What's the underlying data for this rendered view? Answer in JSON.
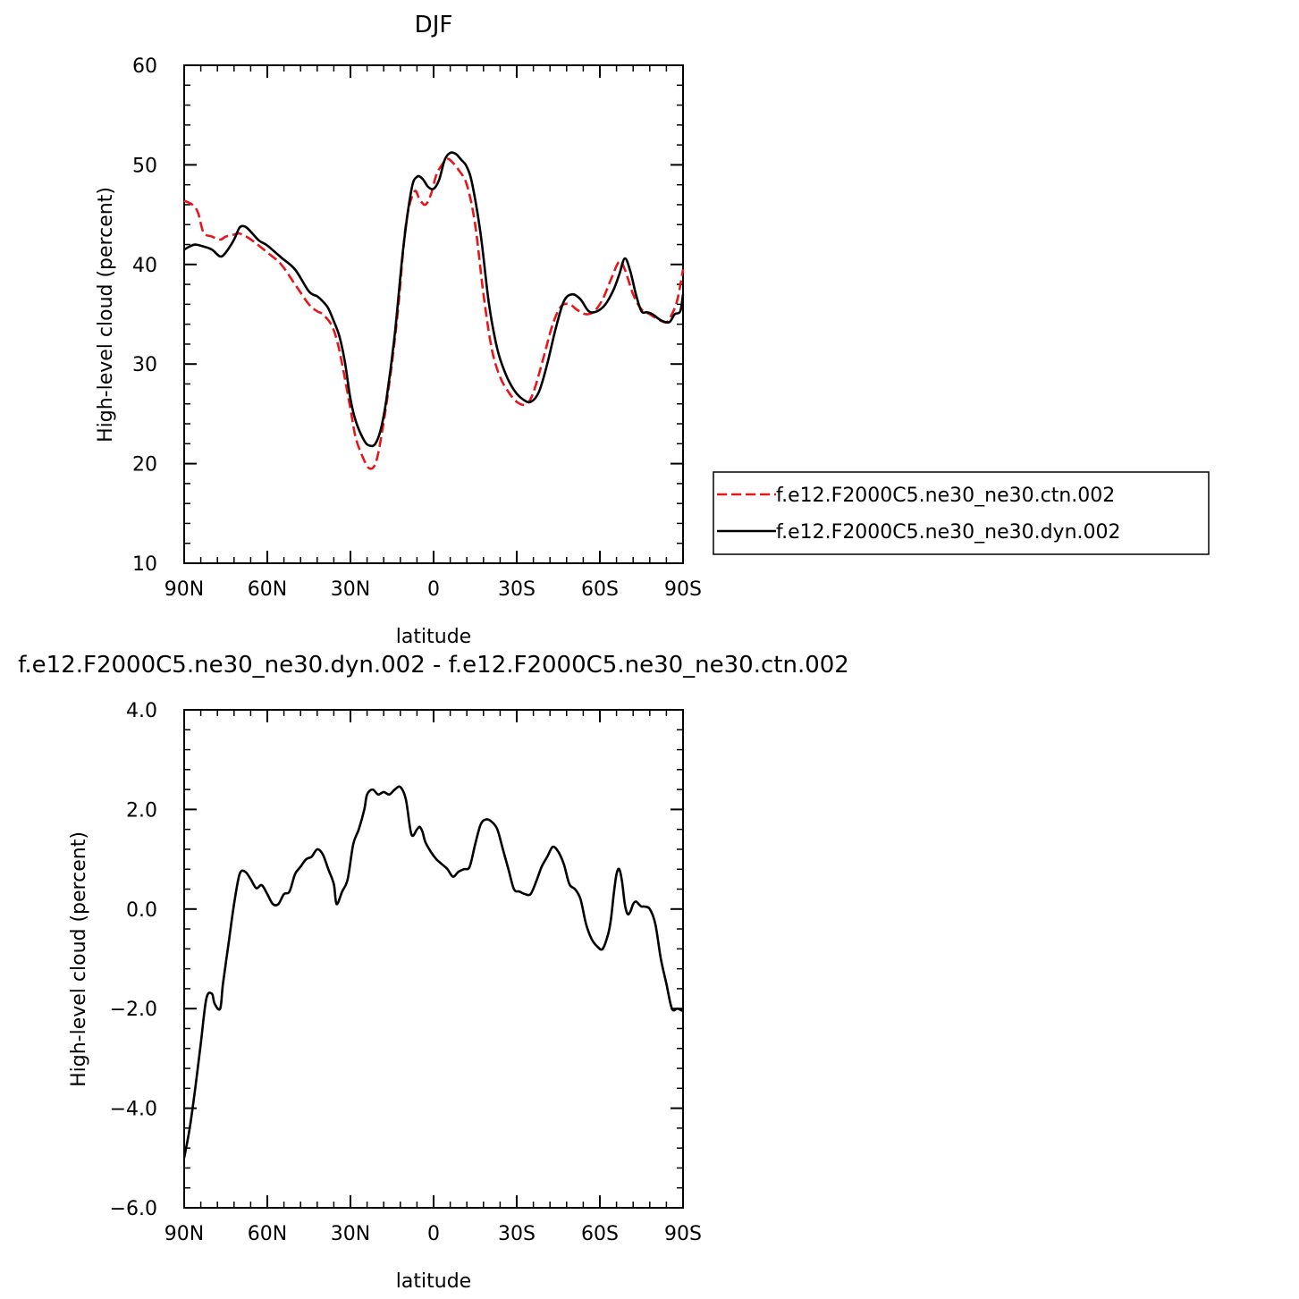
{
  "chart_data": [
    {
      "type": "line",
      "title": "DJF",
      "xlabel": "latitude",
      "ylabel": "High-level cloud (percent)",
      "xlim": [
        90,
        -90
      ],
      "ylim": [
        10,
        60
      ],
      "xticks": [
        90,
        60,
        30,
        0,
        -30,
        -60,
        -90
      ],
      "xtick_labels": [
        "90N",
        "60N",
        "30N",
        "0",
        "30S",
        "60S",
        "90S"
      ],
      "yticks": [
        10,
        20,
        30,
        40,
        50,
        60
      ],
      "ytick_labels": [
        "10",
        "20",
        "30",
        "40",
        "50",
        "60"
      ],
      "grid": false,
      "legend": {
        "placement": "right"
      },
      "series": [
        {
          "name": "f.e12.F2000C5.ne30_ne30.ctn.002",
          "color": "#e8161b",
          "dash": "dashed",
          "x": [
            90,
            87,
            85,
            83,
            80,
            77,
            75,
            72,
            70,
            67,
            64,
            60,
            55,
            50,
            45,
            42,
            40,
            37,
            35,
            33,
            30,
            28,
            25,
            23,
            21,
            19,
            16,
            13,
            10,
            7,
            5,
            3,
            1,
            -1,
            -3,
            -5,
            -7,
            -9,
            -12,
            -15,
            -18,
            -21,
            -24,
            -27,
            -30,
            -33,
            -35,
            -37,
            -40,
            -43,
            -46,
            -49,
            -52,
            -55,
            -58,
            -61,
            -64,
            -67,
            -69,
            -72,
            -75,
            -78,
            -81,
            -84,
            -86,
            -88,
            -90
          ],
          "y": [
            46.4,
            46.0,
            45.2,
            43.2,
            42.8,
            42.5,
            42.8,
            43.0,
            43.1,
            42.7,
            42.1,
            41.2,
            40.0,
            38.0,
            36.0,
            35.3,
            35.0,
            34.0,
            32.5,
            30.0,
            25.5,
            22.5,
            20.3,
            19.5,
            20.0,
            22.5,
            28.0,
            35.0,
            44.0,
            47.3,
            46.5,
            46.0,
            47.0,
            49.0,
            50.0,
            50.6,
            50.2,
            49.5,
            48.0,
            44.0,
            37.0,
            31.5,
            28.7,
            27.2,
            26.2,
            25.9,
            26.5,
            28.0,
            31.0,
            34.0,
            35.8,
            36.0,
            35.4,
            35.0,
            35.3,
            36.5,
            38.5,
            40.3,
            39.5,
            37.0,
            35.5,
            35.0,
            34.5,
            34.2,
            35.0,
            36.5,
            39.5
          ]
        },
        {
          "name": "f.e12.F2000C5.ne30_ne30.dyn.002",
          "color": "#000000",
          "dash": "solid",
          "x": [
            90,
            88,
            86,
            83,
            80,
            77,
            75,
            72,
            70,
            68,
            66,
            63,
            60,
            55,
            50,
            45,
            42,
            40,
            38,
            36,
            34,
            32,
            30,
            28,
            25,
            23,
            21,
            19,
            17,
            14,
            11,
            8,
            6,
            4,
            2,
            0,
            -2,
            -4,
            -6,
            -8,
            -10,
            -12,
            -14,
            -17,
            -20,
            -23,
            -26,
            -29,
            -32,
            -35,
            -38,
            -41,
            -44,
            -47,
            -50,
            -53,
            -56,
            -59,
            -62,
            -65,
            -67,
            -69,
            -71,
            -73,
            -75,
            -77,
            -79,
            -82,
            -85,
            -87,
            -89,
            -90
          ],
          "y": [
            41.5,
            41.8,
            42.0,
            41.8,
            41.5,
            40.8,
            41.2,
            42.5,
            43.7,
            43.8,
            43.3,
            42.4,
            41.9,
            40.7,
            39.5,
            37.3,
            36.8,
            36.3,
            35.6,
            34.3,
            32.8,
            30.2,
            26.5,
            24.2,
            22.3,
            21.8,
            22.0,
            23.5,
            26.5,
            33.0,
            41.5,
            47.5,
            48.8,
            48.6,
            47.8,
            47.6,
            48.5,
            50.5,
            51.2,
            51.1,
            50.5,
            49.8,
            48.0,
            43.0,
            36.0,
            31.5,
            29.0,
            27.4,
            26.5,
            26.2,
            27.2,
            30.0,
            33.5,
            36.3,
            37.0,
            36.5,
            35.3,
            35.3,
            36.0,
            37.5,
            39.0,
            40.6,
            39.3,
            37.0,
            35.3,
            35.2,
            35.0,
            34.4,
            34.2,
            35.0,
            35.3,
            37.0
          ]
        }
      ]
    },
    {
      "type": "line",
      "title": "f.e12.F2000C5.ne30_ne30.dyn.002 - f.e12.F2000C5.ne30_ne30.ctn.002",
      "xlabel": "latitude",
      "ylabel": "High-level cloud (percent)",
      "xlim": [
        90,
        -90
      ],
      "ylim": [
        -6,
        4
      ],
      "xticks": [
        90,
        60,
        30,
        0,
        -30,
        -60,
        -90
      ],
      "xtick_labels": [
        "90N",
        "60N",
        "30N",
        "0",
        "30S",
        "60S",
        "90S"
      ],
      "yticks": [
        -6,
        -4,
        -2,
        0,
        2,
        4
      ],
      "ytick_labels": [
        "−6.0",
        "−4.0",
        "−2.0",
        "0.0",
        "2.0",
        "4.0"
      ],
      "grid": false,
      "series": [
        {
          "color": "#000000",
          "dash": "solid",
          "x": [
            90,
            88,
            86,
            84,
            82,
            80,
            79,
            77,
            76,
            74,
            72,
            70,
            68,
            66,
            64,
            62,
            60,
            58,
            56,
            54,
            52,
            50,
            48,
            46,
            44,
            42,
            40,
            38,
            36,
            35,
            33,
            31,
            29,
            27,
            25,
            24,
            22,
            20,
            18,
            16,
            14,
            12,
            10,
            8,
            6,
            5,
            4,
            3,
            1,
            -1,
            -3,
            -5,
            -7,
            -9,
            -11,
            -13,
            -15,
            -17,
            -19,
            -21,
            -23,
            -25,
            -27,
            -29,
            -31,
            -33,
            -35,
            -37,
            -39,
            -41,
            -43,
            -45,
            -47,
            -49,
            -51,
            -53,
            -55,
            -57,
            -59,
            -61,
            -63,
            -64,
            -65,
            -66,
            -67,
            -68,
            -69,
            -70,
            -71,
            -72,
            -73,
            -74,
            -75,
            -76,
            -78,
            -80,
            -82,
            -84,
            -86,
            -88,
            -90
          ],
          "y": [
            -5.0,
            -4.4,
            -3.6,
            -2.7,
            -1.8,
            -1.7,
            -1.9,
            -2.0,
            -1.5,
            -0.7,
            0.1,
            0.7,
            0.75,
            0.6,
            0.42,
            0.48,
            0.3,
            0.1,
            0.1,
            0.3,
            0.35,
            0.7,
            0.85,
            1.0,
            1.05,
            1.2,
            1.1,
            0.8,
            0.5,
            0.1,
            0.35,
            0.6,
            1.3,
            1.6,
            2.0,
            2.3,
            2.4,
            2.3,
            2.35,
            2.3,
            2.4,
            2.45,
            2.2,
            1.5,
            1.6,
            1.65,
            1.55,
            1.35,
            1.15,
            1.0,
            0.9,
            0.8,
            0.65,
            0.75,
            0.8,
            0.85,
            1.3,
            1.7,
            1.8,
            1.75,
            1.6,
            1.2,
            0.8,
            0.4,
            0.35,
            0.3,
            0.3,
            0.55,
            0.85,
            1.05,
            1.25,
            1.15,
            0.9,
            0.5,
            0.4,
            0.2,
            -0.3,
            -0.6,
            -0.75,
            -0.8,
            -0.5,
            -0.2,
            0.3,
            0.7,
            0.8,
            0.55,
            0.1,
            -0.1,
            -0.05,
            0.1,
            0.15,
            0.1,
            0.05,
            0.05,
            0.0,
            -0.3,
            -1.0,
            -1.5,
            -2.0,
            -2.0,
            -2.05
          ]
        }
      ]
    }
  ]
}
